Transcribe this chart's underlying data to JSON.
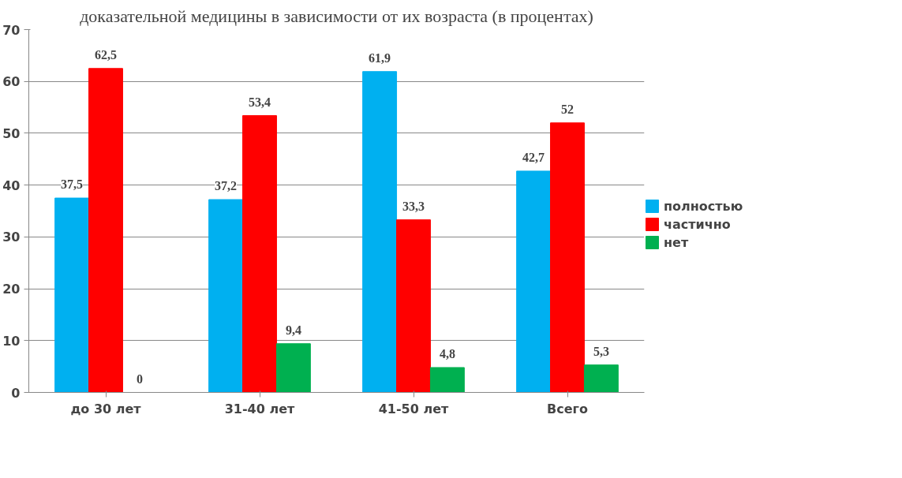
{
  "chart_data": {
    "type": "bar",
    "title": "доказательной медицины в зависимости от их возраста (в процентах)",
    "categories": [
      "до 30 лет",
      "31-40 лет",
      "41-50 лет",
      "Всего"
    ],
    "series": [
      {
        "name": "полностью",
        "color": "#00b0f0",
        "values": [
          37.5,
          37.2,
          61.9,
          42.7
        ],
        "value_labels": [
          "37,5",
          "37,2",
          "61,9",
          "42,7"
        ]
      },
      {
        "name": "частично",
        "color": "#ff0000",
        "values": [
          62.5,
          53.4,
          33.3,
          52
        ],
        "value_labels": [
          "62,5",
          "53,4",
          "33,3",
          "52"
        ]
      },
      {
        "name": "нет",
        "color": "#00b050",
        "values": [
          0,
          9.4,
          4.8,
          5.3
        ],
        "value_labels": [
          "0",
          "9,4",
          "4,8",
          "5,3"
        ]
      }
    ],
    "ylim": [
      0,
      70
    ],
    "yticks": [
      0,
      10,
      20,
      30,
      40,
      50,
      60,
      70
    ],
    "grid": "y",
    "legend": "right"
  }
}
